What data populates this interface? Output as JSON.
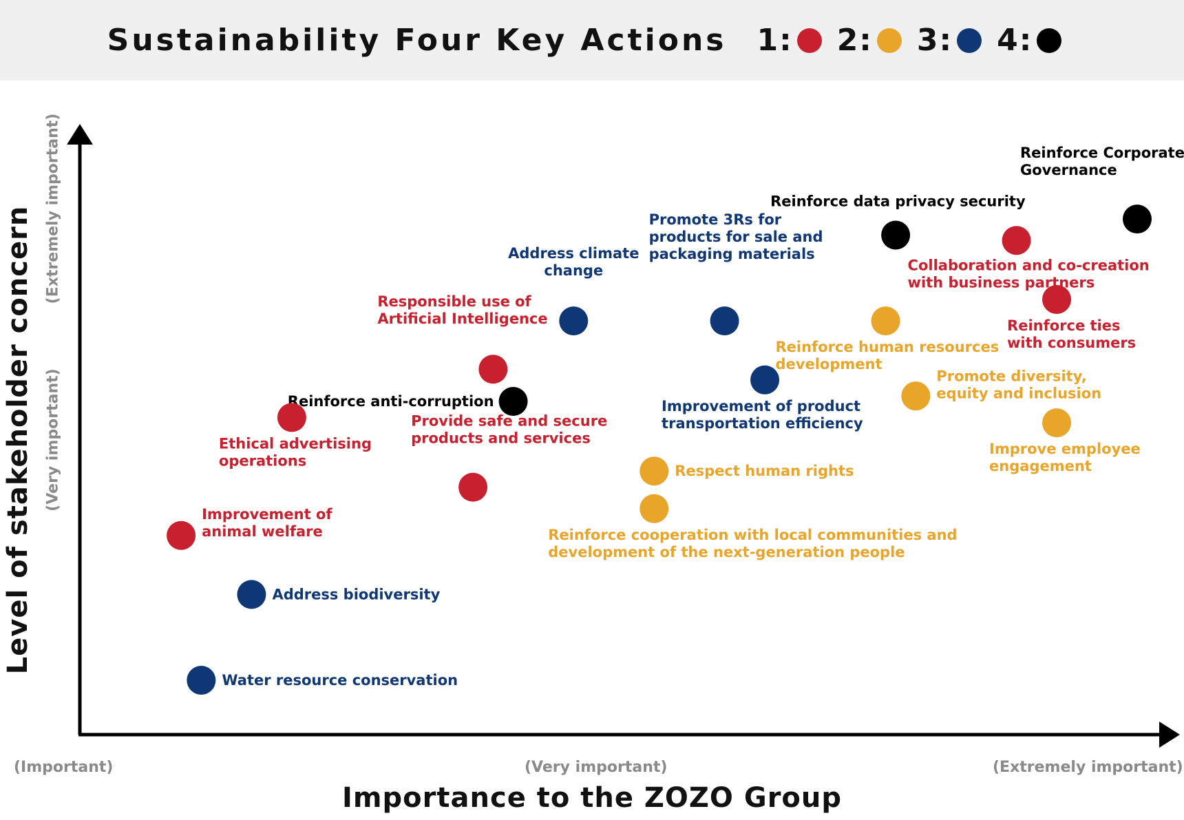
{
  "chart_data": {
    "type": "scatter",
    "title": "Sustainability Four Key Actions",
    "legend": {
      "placement": "top",
      "entries": [
        {
          "label": "1:",
          "color": "#c8202e"
        },
        {
          "label": "2:",
          "color": "#e8a52a"
        },
        {
          "label": "3:",
          "color": "#0f3675"
        },
        {
          "label": "4:",
          "color": "#000000"
        }
      ]
    },
    "xlabel": "Importance to the ZOZO Group",
    "ylabel": "Level of stakeholder concern",
    "x_ticks": [
      "(Important)",
      "(Very important)",
      "(Extremely important)"
    ],
    "y_ticks": [
      "(Very important)",
      "(Extremely important)"
    ],
    "grid": false,
    "points": [
      {
        "label": [
          "Reinforce Corporate",
          "Governance"
        ],
        "group": 4,
        "x": 1.0,
        "y": 0.91
      },
      {
        "label": [
          "Reinforce data privacy security"
        ],
        "group": 4,
        "x": 0.76,
        "y": 0.88
      },
      {
        "label": [
          "Collaboration and co-creation",
          "with business partners"
        ],
        "group": 1,
        "x": 0.88,
        "y": 0.87
      },
      {
        "label": [
          "Reinforce ties",
          "with consumers"
        ],
        "group": 1,
        "x": 0.92,
        "y": 0.76
      },
      {
        "label": [
          "Address climate",
          "change"
        ],
        "group": 3,
        "x": 0.44,
        "y": 0.72
      },
      {
        "label": [
          "Promote 3Rs for",
          "products for sale and",
          "packaging materials"
        ],
        "group": 3,
        "x": 0.59,
        "y": 0.72
      },
      {
        "label": [
          "Reinforce human resources",
          "development"
        ],
        "group": 2,
        "x": 0.75,
        "y": 0.72
      },
      {
        "label": [
          "Responsible use of",
          "Artificial Intelligence"
        ],
        "group": 1,
        "x": 0.36,
        "y": 0.63
      },
      {
        "label": [
          "Improvement of product",
          "transportation efficiency"
        ],
        "group": 3,
        "x": 0.63,
        "y": 0.61
      },
      {
        "label": [
          "Reinforce anti-corruption"
        ],
        "group": 4,
        "x": 0.38,
        "y": 0.57
      },
      {
        "label": [
          "Promote diversity,",
          "equity and inclusion"
        ],
        "group": 2,
        "x": 0.78,
        "y": 0.58
      },
      {
        "label": [
          "Ethical advertising",
          "operations"
        ],
        "group": 1,
        "x": 0.16,
        "y": 0.54
      },
      {
        "label": [
          "Improve employee",
          "engagement"
        ],
        "group": 2,
        "x": 0.92,
        "y": 0.53
      },
      {
        "label": [
          "Respect human rights"
        ],
        "group": 2,
        "x": 0.52,
        "y": 0.44
      },
      {
        "label": [
          "Provide safe and secure",
          "products and services"
        ],
        "group": 1,
        "x": 0.34,
        "y": 0.41
      },
      {
        "label": [
          "Reinforce cooperation with local communities and",
          "development of the next-generation people"
        ],
        "group": 2,
        "x": 0.52,
        "y": 0.37
      },
      {
        "label": [
          "Improvement of",
          "animal welfare"
        ],
        "group": 1,
        "x": 0.05,
        "y": 0.32
      },
      {
        "label": [
          "Address biodiversity"
        ],
        "group": 3,
        "x": 0.12,
        "y": 0.21
      },
      {
        "label": [
          "Water resource conservation"
        ],
        "group": 3,
        "x": 0.07,
        "y": 0.05
      }
    ]
  }
}
